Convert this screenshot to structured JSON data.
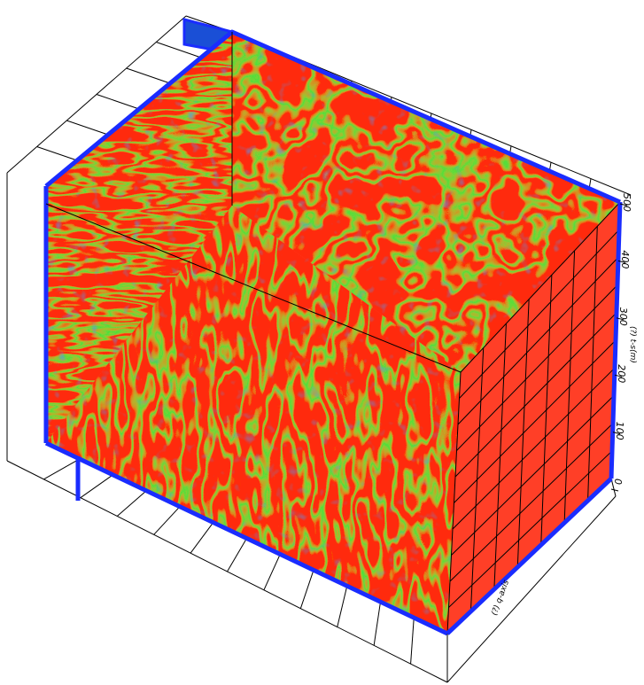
{
  "colors": {
    "background": "#ffffff",
    "slice_border": "#1a2cff",
    "amplitude_high": "#ff2a10",
    "amplitude_mid": "#1ee63c",
    "amplitude_low": "#1a4fd6",
    "grid": "#000000"
  },
  "vertical_axis": {
    "title": "(?) t-s(m)",
    "ticks": [
      "0",
      "100",
      "200",
      "300",
      "400",
      "500"
    ]
  },
  "depth_axis": {
    "title": "(?) q-axis"
  }
}
